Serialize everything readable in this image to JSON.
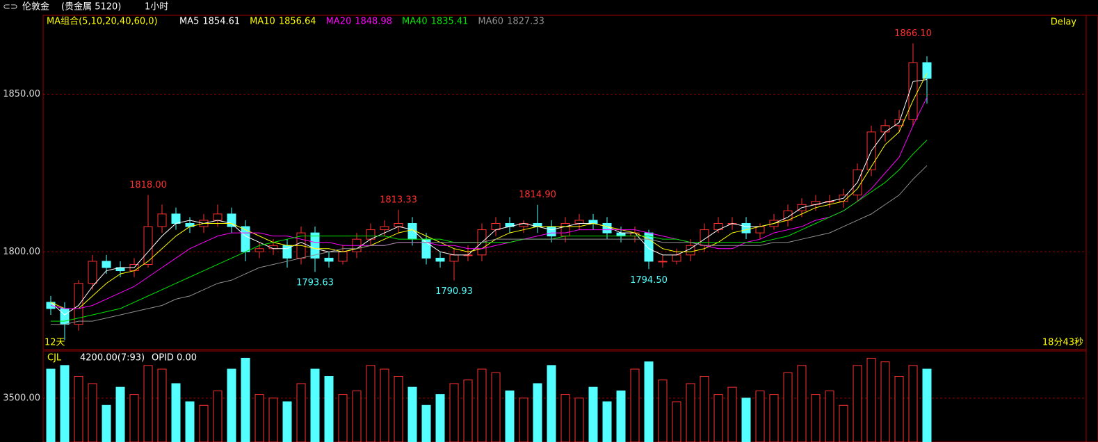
{
  "chart_data": {
    "type": "candlestick",
    "symbol": "伦敦金",
    "market": "(贵金属 5120)",
    "period": "1小时",
    "ma_group": "MA组合(5,10,20,40,60,0)",
    "delay": "Delay",
    "span": "12天",
    "countdown": "18分43秒",
    "up_color": "#ff3232",
    "down_color": "#54ffff",
    "ylim": [
      1769,
      1875
    ],
    "yticks": [
      {
        "value": 1800,
        "label": "1800.00"
      },
      {
        "value": 1850,
        "label": "1850.00"
      }
    ],
    "grid": true,
    "open": [
      1784,
      1782,
      1777,
      1790,
      1797,
      1795,
      1794,
      1796,
      1808,
      1812,
      1809,
      1808,
      1810,
      1812,
      1808,
      1800,
      1801,
      1802,
      1798,
      1806,
      1798,
      1797,
      1800,
      1804,
      1807,
      1808,
      1809,
      1804,
      1798,
      1797,
      1799,
      1799,
      1807,
      1809,
      1808,
      1809,
      1808,
      1805,
      1809,
      1810,
      1809,
      1806,
      1805,
      1806,
      1797,
      1797,
      1799,
      1802,
      1807,
      1809,
      1809,
      1806,
      1808,
      1810,
      1813,
      1815,
      1816,
      1816,
      1818,
      1826,
      1838,
      1840,
      1842,
      1860
    ],
    "high": [
      1786,
      1784,
      1791,
      1799,
      1799,
      1797,
      1798,
      1818,
      1815,
      1814,
      1811,
      1812,
      1815,
      1814,
      1810,
      1803,
      1804,
      1804,
      1808,
      1808,
      1800,
      1802,
      1806,
      1809,
      1810,
      1813.33,
      1811,
      1806,
      1800,
      1801,
      1802,
      1809,
      1811,
      1811,
      1810,
      1814.9,
      1810,
      1811,
      1812,
      1812,
      1811,
      1808,
      1808,
      1807,
      1799,
      1801,
      1804,
      1809,
      1811,
      1811,
      1811,
      1809,
      1812,
      1815,
      1817,
      1818,
      1818,
      1820,
      1828,
      1840,
      1842,
      1845,
      1866.1,
      1862
    ],
    "low": [
      1780,
      1772,
      1775,
      1788,
      1793,
      1792,
      1792,
      1795,
      1806,
      1807,
      1806,
      1806,
      1808,
      1806,
      1797,
      1798,
      1799,
      1795,
      1796,
      1793.63,
      1795,
      1796,
      1798,
      1802,
      1805,
      1806,
      1802,
      1796,
      1795,
      1790.93,
      1797,
      1797,
      1805,
      1806,
      1806,
      1806,
      1803,
      1803,
      1807,
      1807,
      1804,
      1803,
      1803,
      1794.5,
      1795,
      1796,
      1797,
      1800,
      1806,
      1807,
      1804,
      1804,
      1807,
      1808,
      1811,
      1813,
      1814,
      1814,
      1816,
      1824,
      1835,
      1838,
      1840,
      1847
    ],
    "close": [
      1782,
      1777,
      1790,
      1797,
      1795,
      1794,
      1796,
      1808,
      1812,
      1809,
      1808,
      1810,
      1812,
      1808,
      1800,
      1801,
      1802,
      1798,
      1806,
      1798,
      1797,
      1800,
      1804,
      1807,
      1808,
      1809,
      1804,
      1798,
      1797,
      1799,
      1799,
      1807,
      1809,
      1808,
      1809,
      1808,
      1805,
      1809,
      1810,
      1809,
      1806,
      1805,
      1806,
      1797,
      1797,
      1799,
      1802,
      1807,
      1809,
      1809,
      1806,
      1808,
      1810,
      1813,
      1815,
      1816,
      1816,
      1818,
      1826,
      1838,
      1840,
      1842,
      1860,
      1855
    ],
    "high_labels": [
      {
        "value": 1818,
        "label": "1818.00"
      },
      {
        "value": 1813.33,
        "label": "1813.33"
      },
      {
        "value": 1814.9,
        "label": "1814.90"
      },
      {
        "value": 1866.1,
        "label": "1866.10"
      }
    ],
    "low_labels": [
      {
        "value": 1793.63,
        "label": "1793.63"
      },
      {
        "value": 1790.93,
        "label": "1790.93"
      },
      {
        "value": 1794.5,
        "label": "1794.50"
      }
    ],
    "ma_series": [
      {
        "name": "MA5",
        "color": "#ffffff",
        "values": [
          1784,
          1780,
          1783,
          1789,
          1794,
          1795,
          1795,
          1800,
          1805,
          1809,
          1810,
          1809,
          1810,
          1809,
          1805,
          1803,
          1801,
          1801,
          1803,
          1801,
          1800,
          1800,
          1801,
          1804,
          1806,
          1808,
          1807,
          1803,
          1800,
          1799,
          1799,
          1803,
          1807,
          1808,
          1809,
          1808,
          1807,
          1808,
          1809,
          1809,
          1808,
          1806,
          1806,
          1801,
          1799,
          1799,
          1801,
          1804,
          1807,
          1809,
          1808,
          1808,
          1809,
          1811,
          1814,
          1815,
          1816,
          1817,
          1822,
          1832,
          1838,
          1841,
          1854,
          1854.61
        ]
      },
      {
        "name": "MA10",
        "color": "#ffff00",
        "values": [
          1784,
          1782,
          1782,
          1786,
          1790,
          1793,
          1794,
          1797,
          1801,
          1805,
          1808,
          1809,
          1809,
          1809,
          1807,
          1805,
          1803,
          1802,
          1802,
          1801,
          1801,
          1800,
          1801,
          1802,
          1804,
          1806,
          1807,
          1805,
          1803,
          1801,
          1800,
          1801,
          1804,
          1806,
          1807,
          1808,
          1808,
          1808,
          1808,
          1809,
          1808,
          1807,
          1806,
          1804,
          1801,
          1800,
          1800,
          1801,
          1803,
          1806,
          1807,
          1808,
          1809,
          1810,
          1812,
          1814,
          1815,
          1816,
          1820,
          1827,
          1834,
          1838,
          1848,
          1856.64
        ]
      },
      {
        "name": "MA20",
        "color": "#ff00ff",
        "values": [
          1783,
          1782,
          1782,
          1783,
          1785,
          1787,
          1789,
          1792,
          1795,
          1798,
          1801,
          1803,
          1805,
          1806,
          1806,
          1806,
          1805,
          1805,
          1804,
          1803,
          1803,
          1802,
          1802,
          1802,
          1802,
          1803,
          1803,
          1803,
          1802,
          1802,
          1801,
          1801,
          1802,
          1803,
          1804,
          1805,
          1806,
          1806,
          1807,
          1807,
          1807,
          1807,
          1807,
          1806,
          1805,
          1804,
          1803,
          1802,
          1801,
          1801,
          1803,
          1804,
          1806,
          1807,
          1808,
          1810,
          1811,
          1813,
          1816,
          1820,
          1825,
          1830,
          1840,
          1848.98
        ]
      },
      {
        "name": "MA40",
        "color": "#00e600",
        "values": [
          1778,
          1778,
          1779,
          1780,
          1781,
          1782,
          1784,
          1786,
          1788,
          1790,
          1792,
          1794,
          1796,
          1798,
          1800,
          1802,
          1803,
          1804,
          1805,
          1805,
          1805,
          1805,
          1805,
          1805,
          1805,
          1804,
          1804,
          1804,
          1804,
          1803,
          1803,
          1803,
          1803,
          1803,
          1804,
          1804,
          1804,
          1805,
          1805,
          1805,
          1805,
          1805,
          1805,
          1805,
          1804,
          1804,
          1803,
          1803,
          1803,
          1803,
          1803,
          1803,
          1804,
          1805,
          1807,
          1809,
          1811,
          1813,
          1816,
          1819,
          1822,
          1826,
          1831,
          1835.41
        ]
      },
      {
        "name": "MA60",
        "color": "#909090",
        "values": [
          1777,
          1777,
          1778,
          1778,
          1779,
          1780,
          1781,
          1782,
          1783,
          1785,
          1786,
          1788,
          1790,
          1791,
          1793,
          1795,
          1796,
          1797,
          1798,
          1799,
          1800,
          1801,
          1801,
          1802,
          1802,
          1803,
          1803,
          1803,
          1803,
          1803,
          1803,
          1803,
          1804,
          1804,
          1804,
          1804,
          1804,
          1804,
          1804,
          1804,
          1804,
          1804,
          1804,
          1804,
          1803,
          1803,
          1803,
          1802,
          1802,
          1802,
          1802,
          1802,
          1803,
          1803,
          1804,
          1805,
          1806,
          1808,
          1810,
          1812,
          1815,
          1818,
          1823,
          1827.33
        ]
      }
    ],
    "volume": {
      "name": "CJL",
      "info": "4200.00(7:93)",
      "opid": "OPID 0.00",
      "ylim": [
        2500,
        4800
      ],
      "yticks": [
        {
          "value": 3500,
          "label": "3500.00"
        }
      ],
      "values": [
        4300,
        4400,
        4100,
        3900,
        3300,
        3800,
        3600,
        4400,
        4300,
        3900,
        3400,
        3300,
        3700,
        4300,
        4600,
        3600,
        3500,
        3400,
        3900,
        4300,
        4100,
        3600,
        3700,
        4400,
        4300,
        4100,
        3800,
        3300,
        3600,
        3900,
        4000,
        4300,
        4200,
        3700,
        3500,
        3900,
        4400,
        3600,
        3500,
        3800,
        3400,
        3700,
        4300,
        4500,
        4000,
        3400,
        3900,
        4100,
        3600,
        3800,
        3500,
        3700,
        3600,
        4200,
        4400,
        3600,
        3700,
        3300,
        4400,
        4600,
        4500,
        4100,
        4400,
        4300
      ]
    }
  }
}
